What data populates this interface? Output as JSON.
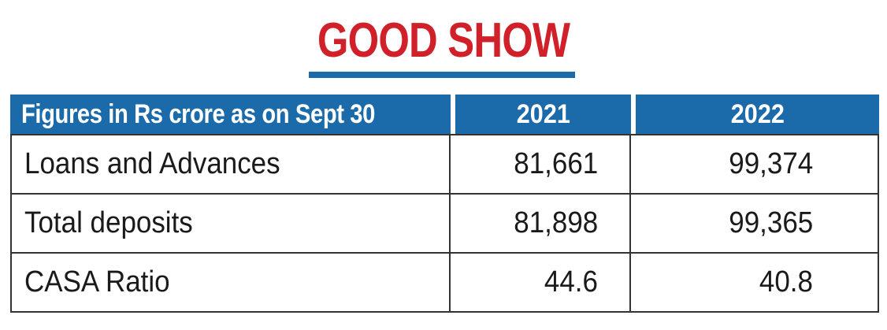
{
  "title": "GOOD SHOW",
  "colors": {
    "title": "#d0202a",
    "accent_blue": "#1b6aa9",
    "header_text": "#ffffff",
    "body_text": "#1a1a1a"
  },
  "table": {
    "headers": [
      "Figures in Rs crore as on Sept 30",
      "2021",
      "2022"
    ],
    "rows": [
      {
        "label": "Loans and Advances",
        "values": [
          "81,661",
          "99,374"
        ]
      },
      {
        "label": "Total deposits",
        "values": [
          "81,898",
          "99,365"
        ]
      },
      {
        "label": "CASA Ratio",
        "values": [
          "44.6",
          "40.8"
        ]
      }
    ]
  }
}
